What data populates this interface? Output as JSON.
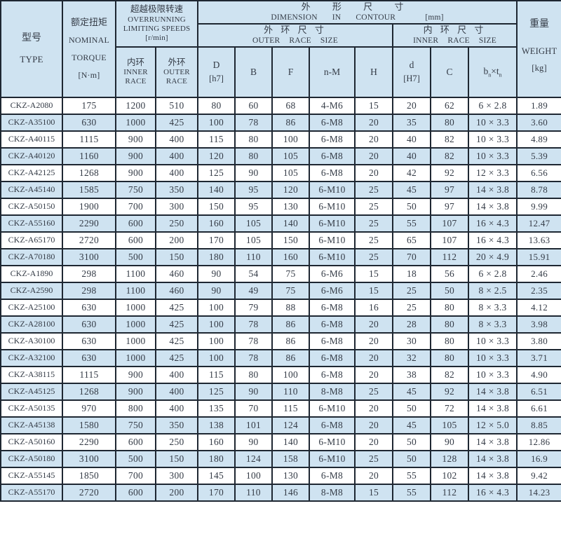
{
  "colors": {
    "header_bg": "#cfe3f1",
    "row_alt_bg": "#cfe3f1",
    "border": "#1e2732",
    "text": "#343b46"
  },
  "table": {
    "header": {
      "type_zh": "型号",
      "type_en": "TYPE",
      "torque_zh": "额定扭矩",
      "torque_en1": "NOMINAL",
      "torque_en2": "TORQUE",
      "torque_unit": "[N·m]",
      "speeds_zh": "超越极限转速",
      "speeds_en1": "OVERRUNNING",
      "speeds_en2": "LIMITING SPEEDS",
      "speeds_unit": "[r/min]",
      "speed_inner_zh": "内环",
      "speed_inner_en1": "INNER",
      "speed_inner_en2": "RACE",
      "speed_outer_zh": "外环",
      "speed_outer_en1": "OUTER",
      "speed_outer_en2": "RACE",
      "dim_zh": "外 形 尺 寸",
      "dim_en": "DIMENSION IN CONTOUR",
      "dim_unit": "[mm]",
      "outer_size_zh": "外 环 尺 寸",
      "outer_size_en": "OUTER RACE SIZE",
      "inner_size_zh": "内 环 尺 寸",
      "inner_size_en": "INNER RACE SIZE",
      "col_D1": "D",
      "col_D2": "[h7]",
      "col_B": "B",
      "col_F": "F",
      "col_nM": "n-M",
      "col_H": "H",
      "col_d1": "d",
      "col_d2": "[H7]",
      "col_C": "C",
      "col_bt_b": "b",
      "col_bt_sub1": "n",
      "col_bt_xt": "×t",
      "col_bt_sub2": "n",
      "weight_zh": "重量",
      "weight_en": "WEIGHT",
      "weight_unit": "[kg]"
    },
    "rows": [
      [
        "CKZ-A2080",
        "175",
        "1200",
        "510",
        "80",
        "60",
        "68",
        "4-M6",
        "15",
        "20",
        "62",
        "6 × 2.8",
        "1.89"
      ],
      [
        "CKZ-A35100",
        "630",
        "1000",
        "425",
        "100",
        "78",
        "86",
        "6-M8",
        "20",
        "35",
        "80",
        "10 × 3.3",
        "3.60"
      ],
      [
        "CKZ-A40115",
        "1115",
        "900",
        "400",
        "115",
        "80",
        "100",
        "6-M8",
        "20",
        "40",
        "82",
        "10 × 3.3",
        "4.89"
      ],
      [
        "CKZ-A40120",
        "1160",
        "900",
        "400",
        "120",
        "80",
        "105",
        "6-M8",
        "20",
        "40",
        "82",
        "10 × 3.3",
        "5.39"
      ],
      [
        "CKZ-A42125",
        "1268",
        "900",
        "400",
        "125",
        "90",
        "105",
        "6-M8",
        "20",
        "42",
        "92",
        "12 × 3.3",
        "6.56"
      ],
      [
        "CKZ-A45140",
        "1585",
        "750",
        "350",
        "140",
        "95",
        "120",
        "6-M10",
        "25",
        "45",
        "97",
        "14 × 3.8",
        "8.78"
      ],
      [
        "CKZ-A50150",
        "1900",
        "700",
        "300",
        "150",
        "95",
        "130",
        "6-M10",
        "25",
        "50",
        "97",
        "14 × 3.8",
        "9.99"
      ],
      [
        "CKZ-A55160",
        "2290",
        "600",
        "250",
        "160",
        "105",
        "140",
        "6-M10",
        "25",
        "55",
        "107",
        "16 × 4.3",
        "12.47"
      ],
      [
        "CKZ-A65170",
        "2720",
        "600",
        "200",
        "170",
        "105",
        "150",
        "6-M10",
        "25",
        "65",
        "107",
        "16 × 4.3",
        "13.63"
      ],
      [
        "CKZ-A70180",
        "3100",
        "500",
        "150",
        "180",
        "110",
        "160",
        "6-M10",
        "25",
        "70",
        "112",
        "20 × 4.9",
        "15.91"
      ],
      [
        "CKZ-A1890",
        "298",
        "1100",
        "460",
        "90",
        "54",
        "75",
        "6-M6",
        "15",
        "18",
        "56",
        "6 × 2.8",
        "2.46"
      ],
      [
        "CKZ-A2590",
        "298",
        "1100",
        "460",
        "90",
        "49",
        "75",
        "6-M6",
        "15",
        "25",
        "50",
        "8 × 2.5",
        "2.35"
      ],
      [
        "CKZ-A25100",
        "630",
        "1000",
        "425",
        "100",
        "79",
        "88",
        "6-M8",
        "16",
        "25",
        "80",
        "8 × 3.3",
        "4.12"
      ],
      [
        "CKZ-A28100",
        "630",
        "1000",
        "425",
        "100",
        "78",
        "86",
        "6-M8",
        "20",
        "28",
        "80",
        "8 × 3.3",
        "3.98"
      ],
      [
        "CKZ-A30100",
        "630",
        "1000",
        "425",
        "100",
        "78",
        "86",
        "6-M8",
        "20",
        "30",
        "80",
        "10 × 3.3",
        "3.80"
      ],
      [
        "CKZ-A32100",
        "630",
        "1000",
        "425",
        "100",
        "78",
        "86",
        "6-M8",
        "20",
        "32",
        "80",
        "10 × 3.3",
        "3.71"
      ],
      [
        "CKZ-A38115",
        "1115",
        "900",
        "400",
        "115",
        "80",
        "100",
        "6-M8",
        "20",
        "38",
        "82",
        "10 × 3.3",
        "4.90"
      ],
      [
        "CKZ-A45125",
        "1268",
        "900",
        "400",
        "125",
        "90",
        "110",
        "8-M8",
        "25",
        "45",
        "92",
        "14 × 3.8",
        "6.51"
      ],
      [
        "CKZ-A50135",
        "970",
        "800",
        "400",
        "135",
        "70",
        "115",
        "6-M10",
        "20",
        "50",
        "72",
        "14 × 3.8",
        "6.61"
      ],
      [
        "CKZ-A45138",
        "1580",
        "750",
        "350",
        "138",
        "101",
        "124",
        "6-M8",
        "20",
        "45",
        "105",
        "12 × 5.0",
        "8.85"
      ],
      [
        "CKZ-A50160",
        "2290",
        "600",
        "250",
        "160",
        "90",
        "140",
        "6-M10",
        "20",
        "50",
        "90",
        "14 × 3.8",
        "12.86"
      ],
      [
        "CKZ-A50180",
        "3100",
        "500",
        "150",
        "180",
        "124",
        "158",
        "6-M10",
        "25",
        "50",
        "128",
        "14 × 3.8",
        "16.9"
      ],
      [
        "CKZ-A55145",
        "1850",
        "700",
        "300",
        "145",
        "100",
        "130",
        "6-M8",
        "20",
        "55",
        "102",
        "14 × 3.8",
        "9.42"
      ],
      [
        "CKZ-A55170",
        "2720",
        "600",
        "200",
        "170",
        "110",
        "146",
        "8-M8",
        "15",
        "55",
        "112",
        "16 × 4.3",
        "14.23"
      ]
    ],
    "column_keys": [
      "type",
      "nominal-torque",
      "speed-inner-race",
      "speed-outer-race",
      "dim-D",
      "dim-B",
      "dim-F",
      "dim-nM",
      "dim-H",
      "dim-d",
      "dim-C",
      "dim-bn-tn",
      "weight"
    ]
  }
}
